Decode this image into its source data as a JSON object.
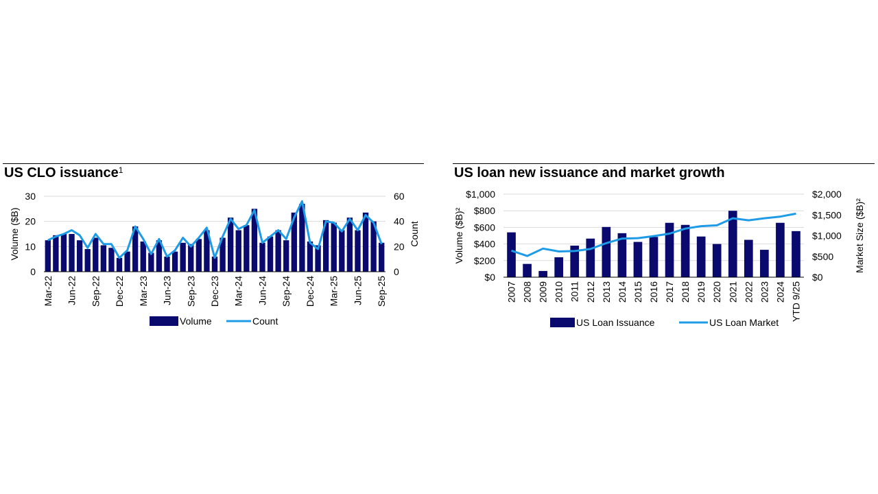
{
  "chart_data": [
    {
      "type": "bar+line",
      "title": "US CLO issuance",
      "title_sup": "1",
      "ylabel": "Volume ($B)",
      "y2label": "Count",
      "ylim": [
        0,
        30
      ],
      "y2lim": [
        0,
        60
      ],
      "yticks": [
        "0",
        "10",
        "20",
        "30"
      ],
      "y2ticks": [
        "0",
        "20",
        "40",
        "60"
      ],
      "grid": true,
      "legend": "bottom-center",
      "x": [
        "Mar-22",
        "Apr-22",
        "May-22",
        "Jun-22",
        "Jul-22",
        "Aug-22",
        "Sep-22",
        "Oct-22",
        "Nov-22",
        "Dec-22",
        "Jan-23",
        "Feb-23",
        "Mar-23",
        "Apr-23",
        "May-23",
        "Jun-23",
        "Jul-23",
        "Aug-23",
        "Sep-23",
        "Oct-23",
        "Nov-23",
        "Dec-23",
        "Jan-24",
        "Feb-24",
        "Mar-24",
        "Apr-24",
        "May-24",
        "Jun-24",
        "Jul-24",
        "Aug-24",
        "Sep-24",
        "Oct-24",
        "Nov-24",
        "Dec-24",
        "Jan-25",
        "Feb-25",
        "Mar-25",
        "Apr-25",
        "May-25",
        "Jun-25",
        "Jul-25",
        "Aug-25",
        "Sep-25"
      ],
      "xtick_labels": [
        "Mar-22",
        "Jun-22",
        "Sep-22",
        "Dec-22",
        "Mar-23",
        "Jun-23",
        "Sep-23",
        "Dec-23",
        "Mar-24",
        "Jun-24",
        "Sep-24",
        "Dec-24",
        "Mar-25",
        "Jun-25",
        "Sep-25"
      ],
      "series": [
        {
          "name": "Volume",
          "kind": "bar",
          "axis": "left",
          "color": "#0a0a6e",
          "values": [
            12.5,
            14.5,
            15,
            15,
            12.5,
            9,
            13.5,
            10.5,
            9.5,
            5.5,
            8,
            18,
            12,
            7.5,
            12.5,
            6,
            8,
            11.5,
            11,
            13,
            16.5,
            6,
            13.5,
            21.5,
            16.5,
            18.5,
            25,
            11.5,
            14,
            16.5,
            12.5,
            23.5,
            27,
            12,
            10.5,
            20.5,
            19.5,
            16.5,
            21.5,
            16.5,
            23.5,
            20,
            11.5
          ]
        },
        {
          "name": "Count",
          "kind": "line",
          "axis": "right",
          "color": "#1e9be6",
          "values": [
            25,
            28,
            30,
            33,
            29,
            19,
            30,
            22,
            22,
            11,
            17,
            36,
            26,
            14,
            26,
            12,
            17,
            27,
            20,
            27,
            35,
            11,
            28,
            42,
            34,
            37,
            49,
            23,
            28,
            33,
            26,
            43,
            56,
            23,
            18,
            40,
            39,
            32,
            42,
            33,
            45,
            39,
            22
          ]
        }
      ]
    },
    {
      "type": "bar+line",
      "title": "US loan new issuance and market growth",
      "ylabel": "Volume ($B)²",
      "y2label": "Market Size ($B)²",
      "ylim": [
        0,
        1000
      ],
      "y2lim": [
        0,
        2000
      ],
      "yticks": [
        "$0",
        "$200",
        "$400",
        "$600",
        "$800",
        "$1,000"
      ],
      "y2ticks": [
        "$0",
        "$500",
        "$1,000",
        "$1,500",
        "$2,000"
      ],
      "grid": true,
      "legend": "bottom-center",
      "categories": [
        "2007",
        "2008",
        "2009",
        "2010",
        "2011",
        "2012",
        "2013",
        "2014",
        "2015",
        "2016",
        "2017",
        "2018",
        "2019",
        "2020",
        "2021",
        "2022",
        "2023",
        "2024",
        "YTD 9/25"
      ],
      "series": [
        {
          "name": "US Loan Issuance",
          "kind": "bar",
          "axis": "left",
          "color": "#0a0a6e",
          "values": [
            540,
            160,
            75,
            240,
            380,
            465,
            605,
            530,
            425,
            485,
            655,
            630,
            490,
            400,
            800,
            450,
            330,
            655,
            555
          ]
        },
        {
          "name": "US Loan Market",
          "kind": "line",
          "axis": "right",
          "color": "#1e9be6",
          "values": [
            640,
            510,
            690,
            620,
            630,
            680,
            820,
            930,
            940,
            990,
            1050,
            1170,
            1230,
            1250,
            1420,
            1370,
            1420,
            1460,
            1530
          ]
        }
      ]
    }
  ]
}
